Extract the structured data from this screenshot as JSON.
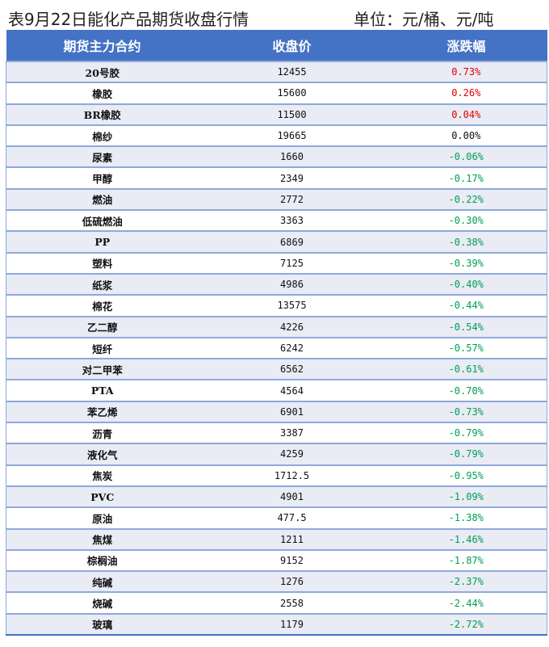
{
  "title": "表9月22日能化产品期货收盘行情",
  "unit": "单位：元/桶、元/吨",
  "colors": {
    "header_bg": "#4472C4",
    "row_alt": "#E9EBF5",
    "up": "#E00000",
    "down": "#00A050",
    "flat": "#111111"
  },
  "table": {
    "headers": [
      "期货主力合约",
      "收盘价",
      "涨跌幅"
    ],
    "rows": [
      [
        "20号胶",
        "12455",
        "0.73%"
      ],
      [
        "橡胶",
        "15600",
        "0.26%"
      ],
      [
        "BR橡胶",
        "11500",
        "0.04%"
      ],
      [
        "棉纱",
        "19665",
        "0.00%"
      ],
      [
        "尿素",
        "1660",
        "-0.06%"
      ],
      [
        "甲醇",
        "2349",
        "-0.17%"
      ],
      [
        "燃油",
        "2772",
        "-0.22%"
      ],
      [
        "低硫燃油",
        "3363",
        "-0.30%"
      ],
      [
        "PP",
        "6869",
        "-0.38%"
      ],
      [
        "塑料",
        "7125",
        "-0.39%"
      ],
      [
        "纸浆",
        "4986",
        "-0.40%"
      ],
      [
        "棉花",
        "13575",
        "-0.44%"
      ],
      [
        "乙二醇",
        "4226",
        "-0.54%"
      ],
      [
        "短纤",
        "6242",
        "-0.57%"
      ],
      [
        "对二甲苯",
        "6562",
        "-0.61%"
      ],
      [
        "PTA",
        "4564",
        "-0.70%"
      ],
      [
        "苯乙烯",
        "6901",
        "-0.73%"
      ],
      [
        "沥青",
        "3387",
        "-0.79%"
      ],
      [
        "液化气",
        "4259",
        "-0.79%"
      ],
      [
        "焦炭",
        "1712.5",
        "-0.95%"
      ],
      [
        "PVC",
        "4901",
        "-1.09%"
      ],
      [
        "原油",
        "477.5",
        "-1.38%"
      ],
      [
        "焦煤",
        "1211",
        "-1.46%"
      ],
      [
        "棕榈油",
        "9152",
        "-1.87%"
      ],
      [
        "纯碱",
        "1276",
        "-2.37%"
      ],
      [
        "烧碱",
        "2558",
        "-2.44%"
      ],
      [
        "玻璃",
        "1179",
        "-2.72%"
      ]
    ]
  }
}
